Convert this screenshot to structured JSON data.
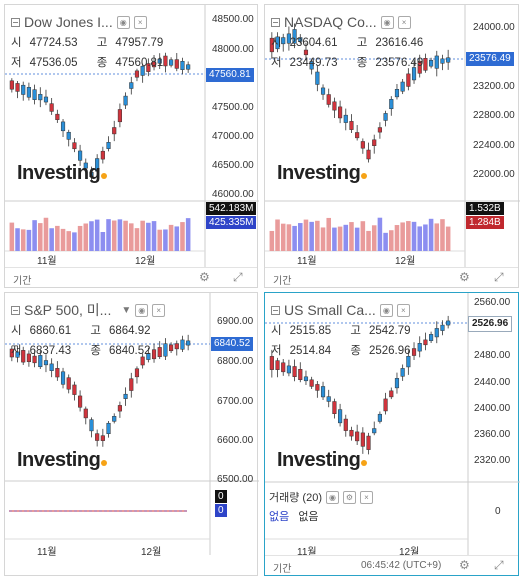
{
  "panels": [
    {
      "title": "Dow Jones I...",
      "open_label": "시",
      "open": "47724.53",
      "high_label": "고",
      "high": "47957.79",
      "low_label": "저",
      "low": "47536.05",
      "close_label": "종",
      "close": "47560.81",
      "price_box": "47560.81",
      "y_ticks": [
        "48500.00",
        "48000.00",
        "47500.00",
        "47000.00",
        "46500.00",
        "46000.00"
      ],
      "vol_box_top": "542.183M",
      "vol_box_bottom": "425.335M",
      "months": [
        "11월",
        "12월"
      ],
      "footer_label": "기간"
    },
    {
      "title": "NASDAQ Co...",
      "open_label": "시",
      "open": "23604.61",
      "high_label": "고",
      "high": "23616.46",
      "low_label": "저",
      "low": "23449.73",
      "close_label": "종",
      "close": "23576.49",
      "price_box": "23576.49",
      "y_ticks": [
        "24000.00",
        "23600.00",
        "23200.00",
        "22800.00",
        "22400.00",
        "22000.00"
      ],
      "vol_box_top": "1.532B",
      "vol_box_bottom": "1.284B",
      "months": [
        "11월",
        "12월"
      ],
      "footer_label": "기간"
    },
    {
      "title": "S&P 500, 미...",
      "open_label": "시",
      "open": "6860.61",
      "high_label": "고",
      "high": "6864.92",
      "low_label": "저",
      "low": "6837.43",
      "close_label": "종",
      "close": "6840.52",
      "price_box": "6840.52",
      "y_ticks": [
        "6900.00",
        "6800.00",
        "6700.00",
        "6600.00",
        "6500.00"
      ],
      "vol_box_top": "0",
      "vol_box_bottom": "0",
      "months": [
        "11월",
        "12월"
      ]
    },
    {
      "title": "US Small Ca...",
      "open_label": "시",
      "open": "2515.85",
      "high_label": "고",
      "high": "2542.79",
      "low_label": "저",
      "low": "2514.84",
      "close_label": "종",
      "close": "2526.96",
      "price_box": "2526.96",
      "y_ticks": [
        "2560.00",
        "2520.00",
        "2480.00",
        "2440.00",
        "2400.00",
        "2360.00",
        "2320.00"
      ],
      "volume_title": "거래량 (20)",
      "volume_value_label": "없음",
      "volume_value": "없음",
      "volume_axis": "0",
      "months": [
        "11월",
        "12월"
      ],
      "footer_label": "기간",
      "time": "06:45:42 (UTC+9)"
    }
  ],
  "brand": "Investing",
  "colors": {
    "up": "#d0343d",
    "down": "#2a8fd8",
    "price_box": "#2e6bd3",
    "vol_down": "#8c8ef0",
    "vol_up": "#e99b9b"
  }
}
